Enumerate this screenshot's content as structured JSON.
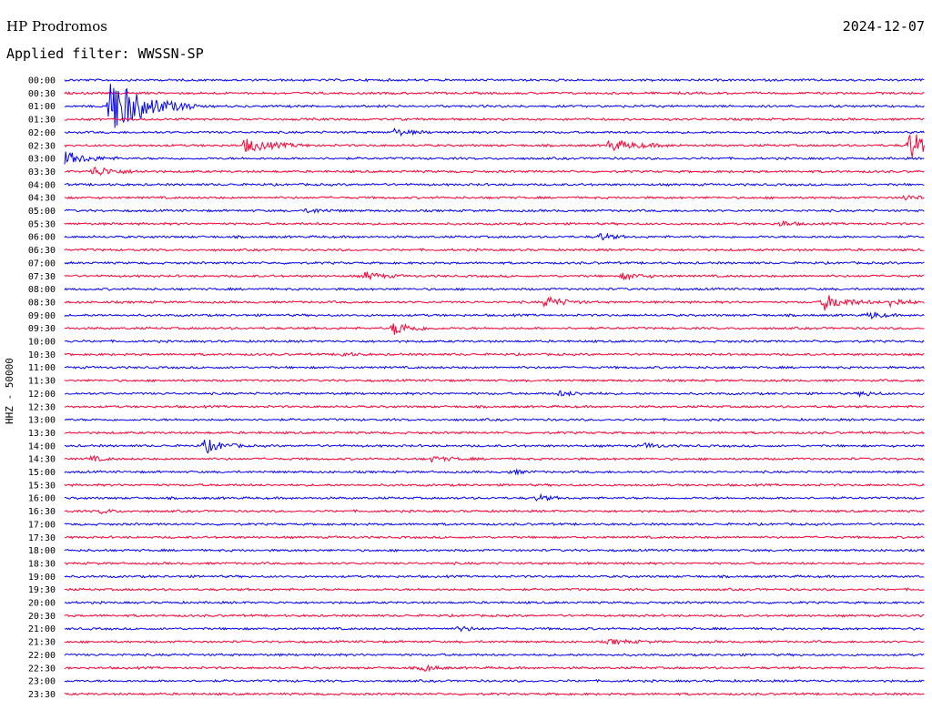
{
  "header": {
    "station": "HP Prodromos",
    "date": "2024-12-07",
    "filter": "Applied filter: WWSSN-SP"
  },
  "chart_data": {
    "type": "line",
    "title": "HP Prodromos",
    "ylabel": "HHZ - 50000",
    "xlabel": "",
    "row_labels": [
      "00:00",
      "00:30",
      "01:00",
      "01:30",
      "02:00",
      "02:30",
      "03:00",
      "03:30",
      "04:00",
      "04:30",
      "05:00",
      "05:30",
      "06:00",
      "06:30",
      "07:00",
      "07:30",
      "08:00",
      "08:30",
      "09:00",
      "09:30",
      "10:00",
      "10:30",
      "11:00",
      "11:30",
      "12:00",
      "12:30",
      "13:00",
      "13:30",
      "14:00",
      "14:30",
      "15:00",
      "15:30",
      "16:00",
      "16:30",
      "17:00",
      "17:30",
      "18:00",
      "18:30",
      "19:00",
      "19:30",
      "20:00",
      "20:30",
      "21:00",
      "21:30",
      "22:00",
      "22:30",
      "23:00",
      "23:30"
    ],
    "row_colors": [
      "#0000ff",
      "#ff0033"
    ],
    "events": [
      {
        "row": "01:00",
        "minute": 1.6,
        "amplitude": 5.5,
        "duration_min": 3
      },
      {
        "row": "02:30",
        "minute": 6.3,
        "amplitude": 1.2,
        "duration_min": 2.5
      },
      {
        "row": "02:00",
        "minute": 11.5,
        "amplitude": 0.6,
        "duration_min": 1.5
      },
      {
        "row": "02:30",
        "minute": 19.0,
        "amplitude": 1.0,
        "duration_min": 2.5
      },
      {
        "row": "02:30",
        "minute": 29.5,
        "amplitude": 2.8,
        "duration_min": 1.5
      },
      {
        "row": "03:00",
        "minute": 0.0,
        "amplitude": 1.2,
        "duration_min": 2
      },
      {
        "row": "03:30",
        "minute": 1.0,
        "amplitude": 0.9,
        "duration_min": 2
      },
      {
        "row": "04:30",
        "minute": 29.3,
        "amplitude": 0.5,
        "duration_min": 1
      },
      {
        "row": "05:00",
        "minute": 8.5,
        "amplitude": 0.4,
        "duration_min": 1.5
      },
      {
        "row": "05:30",
        "minute": 25.0,
        "amplitude": 0.5,
        "duration_min": 1
      },
      {
        "row": "06:00",
        "minute": 18.7,
        "amplitude": 0.7,
        "duration_min": 1
      },
      {
        "row": "07:30",
        "minute": 10.5,
        "amplitude": 0.7,
        "duration_min": 1.5
      },
      {
        "row": "07:30",
        "minute": 19.5,
        "amplitude": 0.6,
        "duration_min": 1.5
      },
      {
        "row": "08:30",
        "minute": 16.8,
        "amplitude": 1.1,
        "duration_min": 1.5
      },
      {
        "row": "08:30",
        "minute": 26.5,
        "amplitude": 1.4,
        "duration_min": 2
      },
      {
        "row": "08:30",
        "minute": 28.8,
        "amplitude": 0.8,
        "duration_min": 1.5
      },
      {
        "row": "09:00",
        "minute": 28.1,
        "amplitude": 0.7,
        "duration_min": 1
      },
      {
        "row": "09:30",
        "minute": 11.5,
        "amplitude": 1.3,
        "duration_min": 1.5
      },
      {
        "row": "10:30",
        "minute": 9.7,
        "amplitude": 0.4,
        "duration_min": 1
      },
      {
        "row": "12:00",
        "minute": 17.2,
        "amplitude": 0.4,
        "duration_min": 2
      },
      {
        "row": "12:00",
        "minute": 27.8,
        "amplitude": 0.5,
        "duration_min": 1
      },
      {
        "row": "14:00",
        "minute": 4.9,
        "amplitude": 1.3,
        "duration_min": 1.5
      },
      {
        "row": "14:00",
        "minute": 20.3,
        "amplitude": 0.5,
        "duration_min": 1
      },
      {
        "row": "14:30",
        "minute": 0.9,
        "amplitude": 0.5,
        "duration_min": 1
      },
      {
        "row": "14:30",
        "minute": 12.8,
        "amplitude": 0.4,
        "duration_min": 2
      },
      {
        "row": "15:00",
        "minute": 15.6,
        "amplitude": 0.4,
        "duration_min": 1
      },
      {
        "row": "16:00",
        "minute": 16.5,
        "amplitude": 0.6,
        "duration_min": 1
      },
      {
        "row": "16:30",
        "minute": 1.3,
        "amplitude": 0.4,
        "duration_min": 1
      },
      {
        "row": "21:00",
        "minute": 13.8,
        "amplitude": 0.5,
        "duration_min": 1
      },
      {
        "row": "21:30",
        "minute": 19.0,
        "amplitude": 0.4,
        "duration_min": 2
      },
      {
        "row": "22:30",
        "minute": 12.5,
        "amplitude": 0.7,
        "duration_min": 1
      }
    ],
    "grid": false
  }
}
